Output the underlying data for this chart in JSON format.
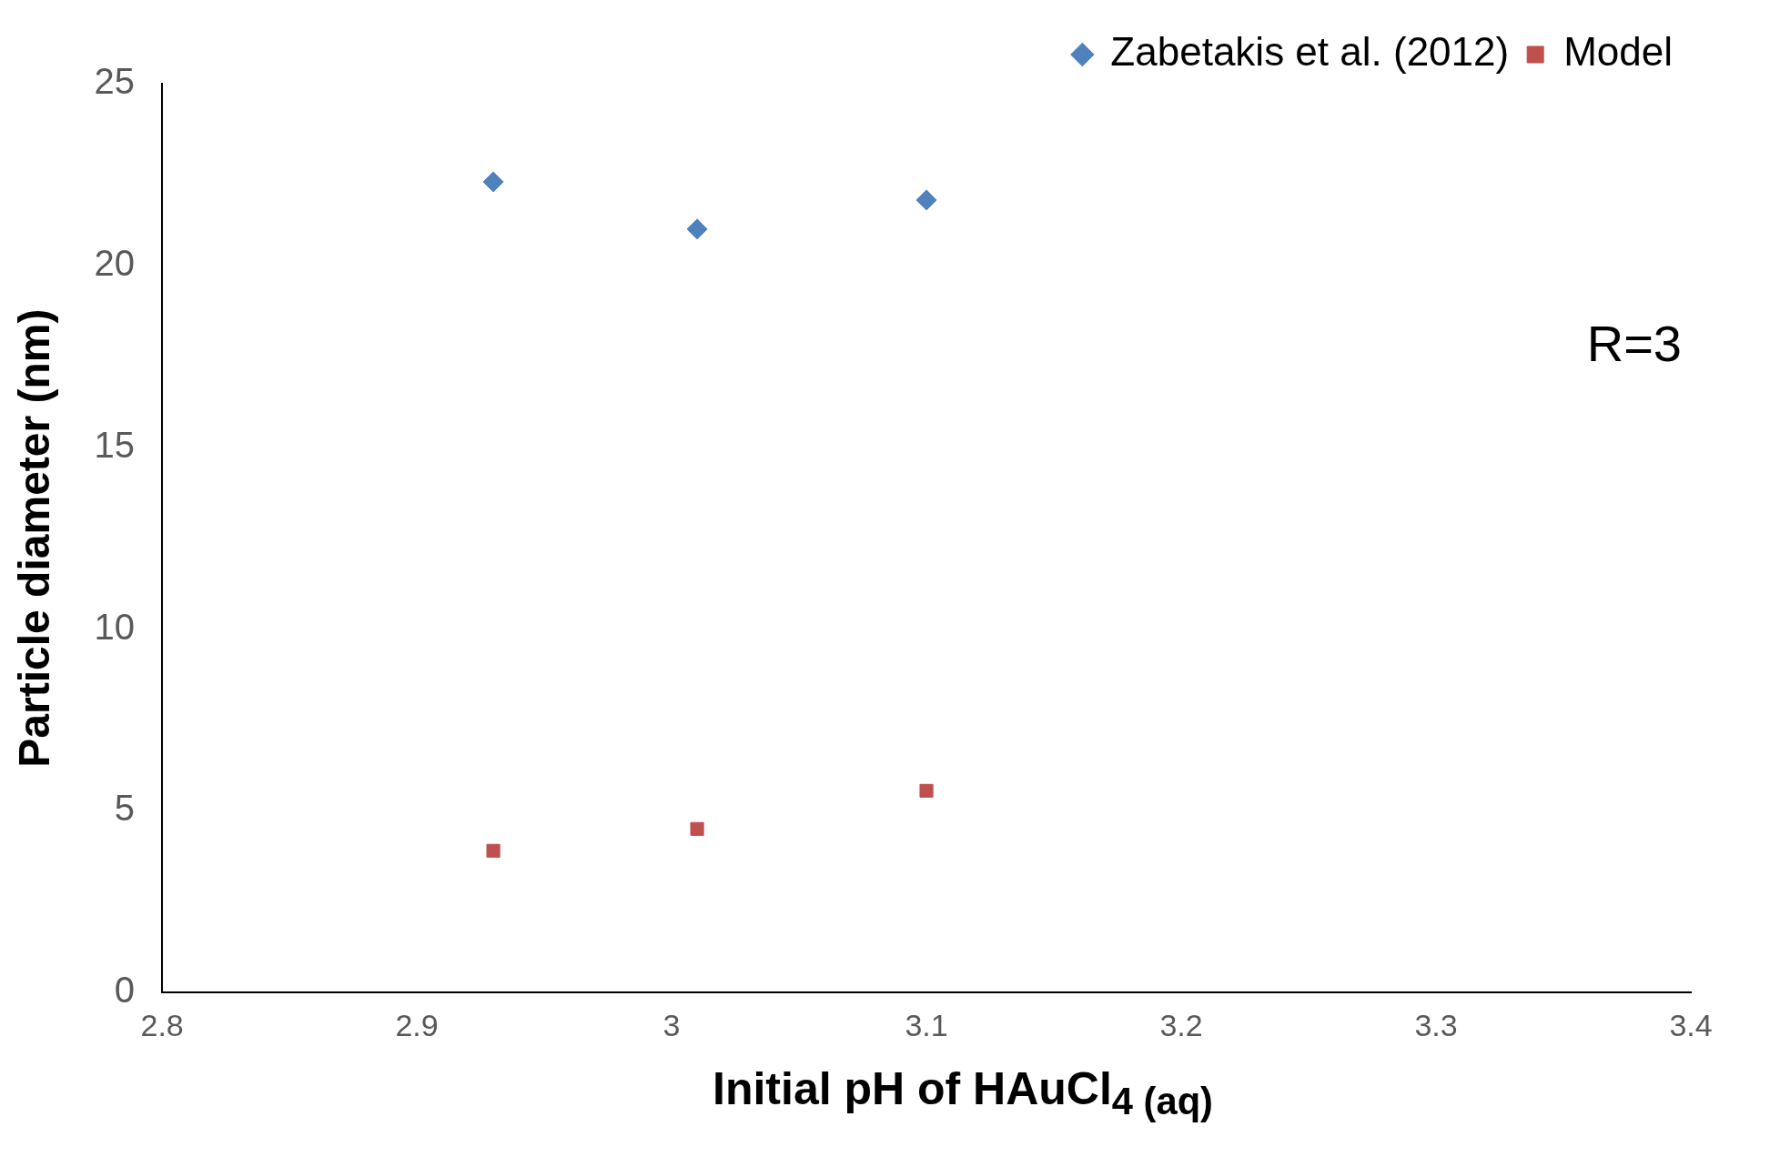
{
  "chart_data": {
    "type": "scatter",
    "xlabel": "Initial pH of HAuCl$_{4 (aq)}$",
    "ylabel": "Particle diameter (nm)",
    "annotations": [
      "R=3"
    ],
    "xlim": [
      2.8,
      3.4
    ],
    "xticks": [
      2.8,
      2.9,
      3,
      3.1,
      3.2,
      3.3,
      3.4
    ],
    "ylim": [
      0,
      25
    ],
    "yticks": [
      0,
      5,
      10,
      15,
      20,
      25
    ],
    "grid": false,
    "legend": "top right",
    "series": [
      {
        "name": "Zabetakis et al. (2012)",
        "color": "#4f81bd",
        "marker": "diamond",
        "x": [
          2.93,
          3.01,
          3.1
        ],
        "values": [
          22.3,
          21.0,
          21.8
        ]
      },
      {
        "name": "Model",
        "color": "#c0504d",
        "marker": "square",
        "x": [
          2.93,
          3.01,
          3.1
        ],
        "values": [
          3.9,
          4.5,
          5.55
        ]
      }
    ]
  }
}
